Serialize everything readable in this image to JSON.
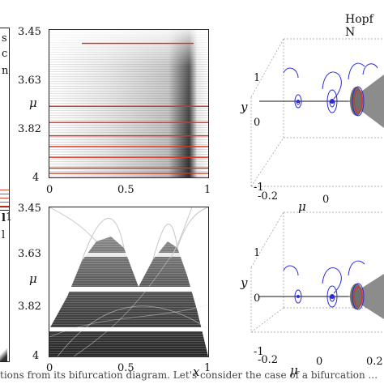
{
  "header": {
    "top_line": "",
    "panel_title_right": "Hopf N"
  },
  "left_strip": {
    "top_letters": [
      "s",
      "c",
      "n"
    ],
    "bottom_letters": [
      "l",
      "l"
    ],
    "top_tick": "1",
    "bottom_tick": "1"
  },
  "top_middle": {
    "y_axis_symbol": "μ",
    "y_ticks": [
      "3.45",
      "3.63",
      "3.82",
      "4"
    ],
    "x_ticks": [
      "0",
      "0.5",
      "1"
    ],
    "red_lines_mu": [
      3.5,
      3.735,
      3.795,
      3.845,
      3.885,
      3.925,
      3.965,
      3.985
    ],
    "line_color": "#e0301e"
  },
  "bottom_middle": {
    "y_axis_symbol": "μ",
    "x_axis_symbol": "x",
    "y_ticks": [
      "3.45",
      "3.63",
      "3.82",
      "4"
    ],
    "x_ticks": [
      "0",
      "0.5",
      "1"
    ]
  },
  "right_top": {
    "y_axis_symbol": "y",
    "mu_axis_symbol": "μ",
    "y_ticks": [
      "1",
      "0",
      "-1"
    ],
    "x_ticks": [
      "-0.2",
      "0"
    ],
    "spiral_color": "#2a2ad8",
    "cone_color": "#8c8c8c",
    "highlight_color": "#e0301e"
  },
  "right_bottom": {
    "y_axis_symbol": "y",
    "mu_axis_symbol": "μ",
    "y_ticks": [
      "1",
      "0",
      "-1"
    ],
    "x_ticks": [
      "-0.2",
      "0",
      "0.2"
    ]
  },
  "caption": "tions from its bifurcation diagram. Let's consider the case of a bifurcation ..."
}
